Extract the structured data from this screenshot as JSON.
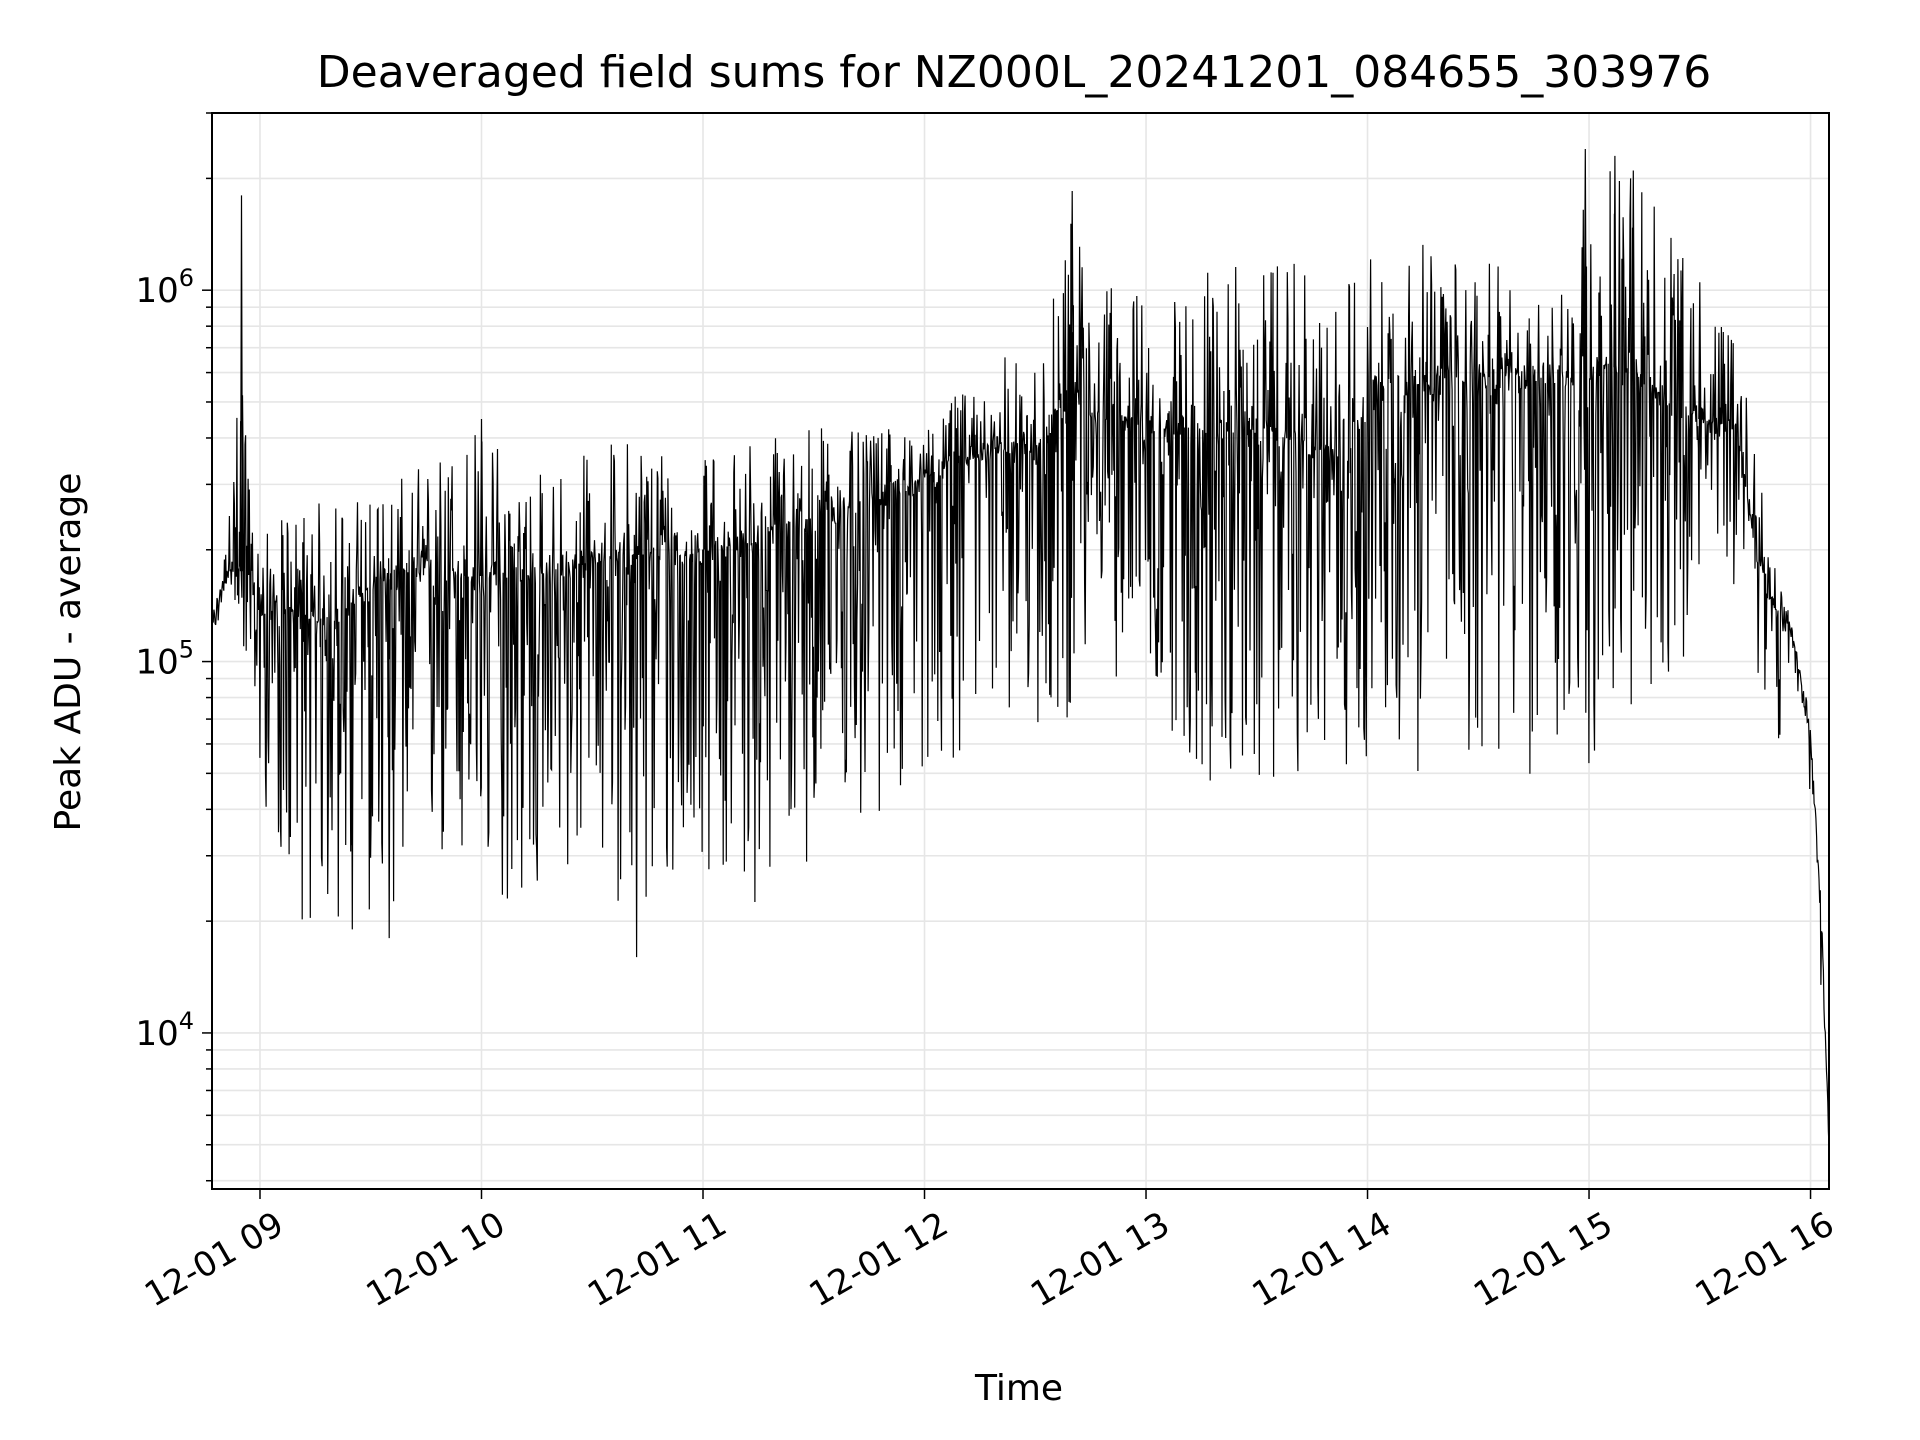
{
  "chart_data": {
    "type": "line",
    "title": "Deaveraged field sums for NZ000L_20241201_084655_303976",
    "xlabel": "Time",
    "ylabel": "Peak ADU - average",
    "yscale": "log",
    "grid": true,
    "line_color": "#000000",
    "grid_color": "#e6e6e6",
    "xlim": [
      "2024-12-01T08:47",
      "2024-12-01T16:05"
    ],
    "ylim": [
      3800,
      3000000
    ],
    "x_ticks": [
      {
        "value": "2024-12-01T09:00",
        "label": "12-01 09"
      },
      {
        "value": "2024-12-01T10:00",
        "label": "12-01 10"
      },
      {
        "value": "2024-12-01T11:00",
        "label": "12-01 11"
      },
      {
        "value": "2024-12-01T12:00",
        "label": "12-01 12"
      },
      {
        "value": "2024-12-01T13:00",
        "label": "12-01 13"
      },
      {
        "value": "2024-12-01T14:00",
        "label": "12-01 14"
      },
      {
        "value": "2024-12-01T15:00",
        "label": "12-01 15"
      },
      {
        "value": "2024-12-01T16:00",
        "label": "12-01 16"
      }
    ],
    "y_ticks": [
      {
        "value": 10000,
        "base": "10",
        "exp": "4"
      },
      {
        "value": 100000,
        "base": "10",
        "exp": "5"
      },
      {
        "value": 1000000,
        "base": "10",
        "exp": "6"
      }
    ],
    "series": [
      {
        "x": [
          "2024-12-01T08:47",
          "2024-12-01T08:51",
          "2024-12-01T08:55",
          "2024-12-01T08:58",
          "2024-12-01T09:00",
          "2024-12-01T09:10",
          "2024-12-01T09:20",
          "2024-12-01T09:30",
          "2024-12-01T09:45",
          "2024-12-01T10:00",
          "2024-12-01T10:15",
          "2024-12-01T10:30",
          "2024-12-01T10:45",
          "2024-12-01T11:00",
          "2024-12-01T11:15",
          "2024-12-01T11:30",
          "2024-12-01T11:45",
          "2024-12-01T12:00",
          "2024-12-01T12:15",
          "2024-12-01T12:30",
          "2024-12-01T12:40",
          "2024-12-01T12:45",
          "2024-12-01T13:00",
          "2024-12-01T13:15",
          "2024-12-01T13:30",
          "2024-12-01T13:45",
          "2024-12-01T13:55",
          "2024-12-01T14:00",
          "2024-12-01T14:15",
          "2024-12-01T14:30",
          "2024-12-01T14:45",
          "2024-12-01T14:55",
          "2024-12-01T15:00",
          "2024-12-01T15:10",
          "2024-12-01T15:20",
          "2024-12-01T15:30",
          "2024-12-01T15:40",
          "2024-12-01T15:45",
          "2024-12-01T15:50",
          "2024-12-01T15:55",
          "2024-12-01T16:00",
          "2024-12-01T16:03",
          "2024-12-01T16:05"
        ],
        "y_center": [
          120000,
          175000,
          175000,
          150000,
          140000,
          130000,
          130000,
          160000,
          180000,
          170000,
          170000,
          185000,
          195000,
          200000,
          210000,
          240000,
          270000,
          310000,
          370000,
          360000,
          550000,
          480000,
          440000,
          420000,
          420000,
          380000,
          340000,
          550000,
          560000,
          600000,
          580000,
          580000,
          620000,
          620000,
          520000,
          450000,
          420000,
          200000,
          140000,
          120000,
          60000,
          20000,
          4800
        ],
        "y_high": [
          150000,
          250000,
          1800000,
          260000,
          230000,
          270000,
          280000,
          300000,
          350000,
          450000,
          330000,
          380000,
          420000,
          350000,
          420000,
          450000,
          420000,
          480000,
          650000,
          950000,
          1800000,
          1100000,
          1000000,
          1200000,
          1150000,
          1200000,
          1100000,
          1300000,
          1350000,
          1200000,
          1100000,
          1150000,
          2400000,
          2300000,
          2200000,
          1100000,
          1050000,
          520000,
          230000,
          150000,
          90000,
          25000,
          5000
        ],
        "y_low": [
          110000,
          100000,
          120000,
          60000,
          45000,
          20000,
          18000,
          20000,
          25000,
          22000,
          20000,
          30000,
          16000,
          28000,
          21000,
          30000,
          32000,
          50000,
          55000,
          60000,
          70000,
          90000,
          90000,
          42000,
          42000,
          52000,
          50000,
          50000,
          50000,
          52000,
          45000,
          55000,
          50000,
          65000,
          50000,
          180000,
          160000,
          55000,
          55000,
          80000,
          38000,
          12000,
          4700
        ],
        "spikiness": [
          0.25,
          0.3,
          0.5,
          0.7,
          0.85,
          0.95,
          1.0,
          1.0,
          1.0,
          1.0,
          1.0,
          1.0,
          1.0,
          1.0,
          1.0,
          1.0,
          0.9,
          0.8,
          0.7,
          0.8,
          0.9,
          0.9,
          1.0,
          1.0,
          1.0,
          1.0,
          1.0,
          1.0,
          1.0,
          1.0,
          1.0,
          1.0,
          1.0,
          1.0,
          0.9,
          0.6,
          0.6,
          0.5,
          0.35,
          0.1,
          0.05,
          0.02,
          0.0
        ],
        "spikes": [
          {
            "x": "2024-12-01T08:55",
            "y": 1800000
          },
          {
            "x": "2024-12-01T10:00",
            "y": 450000
          },
          {
            "x": "2024-12-01T12:40",
            "y": 1850000
          },
          {
            "x": "2024-12-01T14:59",
            "y": 2400000
          },
          {
            "x": "2024-12-01T15:07",
            "y": 2300000
          },
          {
            "x": "2024-12-01T15:12",
            "y": 2100000
          },
          {
            "x": "2024-12-01T10:42",
            "y": 16000
          },
          {
            "x": "2024-12-01T09:35",
            "y": 18000
          },
          {
            "x": "2024-12-01T09:25",
            "y": 19000
          },
          {
            "x": "2024-12-01T15:30",
            "y": 1050000
          }
        ]
      }
    ]
  }
}
